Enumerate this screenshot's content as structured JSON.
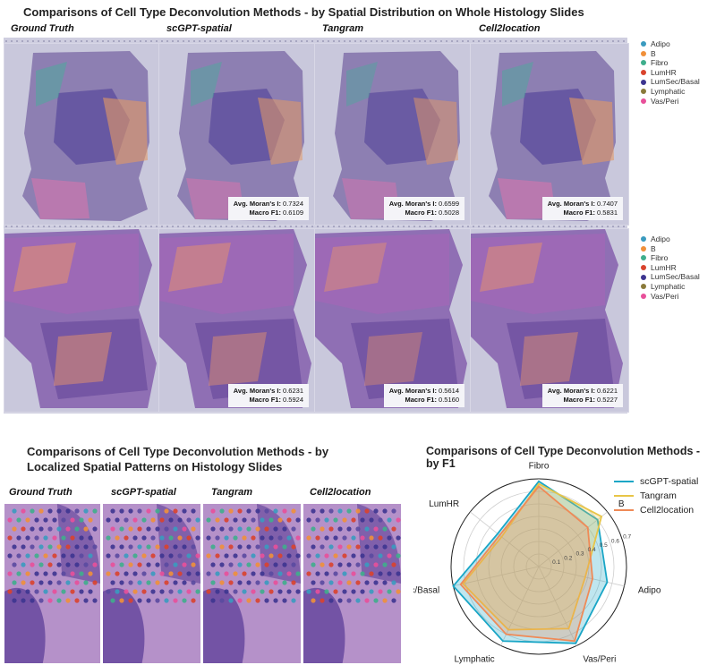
{
  "top": {
    "title": "Comparisons of Cell Type Deconvolution Methods - by Spatial Distribution on Whole Histology Slides",
    "methods": [
      "Ground Truth",
      "scGPT-spatial",
      "Tangram",
      "Cell2location"
    ],
    "legend": [
      {
        "label": "Adipo",
        "color": "#3a9bbf"
      },
      {
        "label": "B",
        "color": "#f0903a"
      },
      {
        "label": "Fibro",
        "color": "#3fae8c"
      },
      {
        "label": "LumHR",
        "color": "#d9432d"
      },
      {
        "label": "LumSec/Basal",
        "color": "#3d3590"
      },
      {
        "label": "Lymphatic",
        "color": "#8a7a3a"
      },
      {
        "label": "Vas/Peri",
        "color": "#e8509a"
      }
    ],
    "metric_label_moran": "Avg. Moran's I:",
    "metric_label_f1": "Macro F1:",
    "row1_metrics": [
      {
        "moran": "0.7324",
        "f1": "0.6109"
      },
      {
        "moran": "0.6599",
        "f1": "0.5028"
      },
      {
        "moran": "0.7407",
        "f1": "0.5831"
      }
    ],
    "row2_metrics": [
      {
        "moran": "0.6231",
        "f1": "0.5924"
      },
      {
        "moran": "0.5614",
        "f1": "0.5160"
      },
      {
        "moran": "0.6221",
        "f1": "0.5227"
      }
    ]
  },
  "bottom_left": {
    "title_line1": "Comparisons of Cell Type Deconvolution Methods - by",
    "title_line2": "Localized Spatial Patterns on Histology Slides",
    "methods": [
      "Ground Truth",
      "scGPT-spatial",
      "Tangram",
      "Cell2location"
    ]
  },
  "chart_data": {
    "type": "radar",
    "title": "Comparisons of Cell Type Deconvolution Methods - by F1",
    "axes": [
      "Fibro",
      "B",
      "Adipo",
      "Vas/Peri",
      "Lymphatic",
      "LumSec/Basal",
      "LumHR"
    ],
    "radial_ticks": [
      "0.1",
      "0.2",
      "0.3",
      "0.4",
      "0.5",
      "0.6",
      "0.7"
    ],
    "rlim": [
      0,
      0.7
    ],
    "series": [
      {
        "name": "scGPT-spatial",
        "color": "#1aa6c6",
        "values": [
          0.68,
          0.6,
          0.56,
          0.68,
          0.66,
          0.7,
          0.42
        ]
      },
      {
        "name": "Tangram",
        "color": "#e8c547",
        "values": [
          0.66,
          0.64,
          0.38,
          0.55,
          0.56,
          0.62,
          0.38
        ]
      },
      {
        "name": "Cell2location",
        "color": "#ef8a57",
        "values": [
          0.64,
          0.5,
          0.44,
          0.66,
          0.6,
          0.64,
          0.4
        ]
      }
    ],
    "legend_position": "top-right"
  }
}
